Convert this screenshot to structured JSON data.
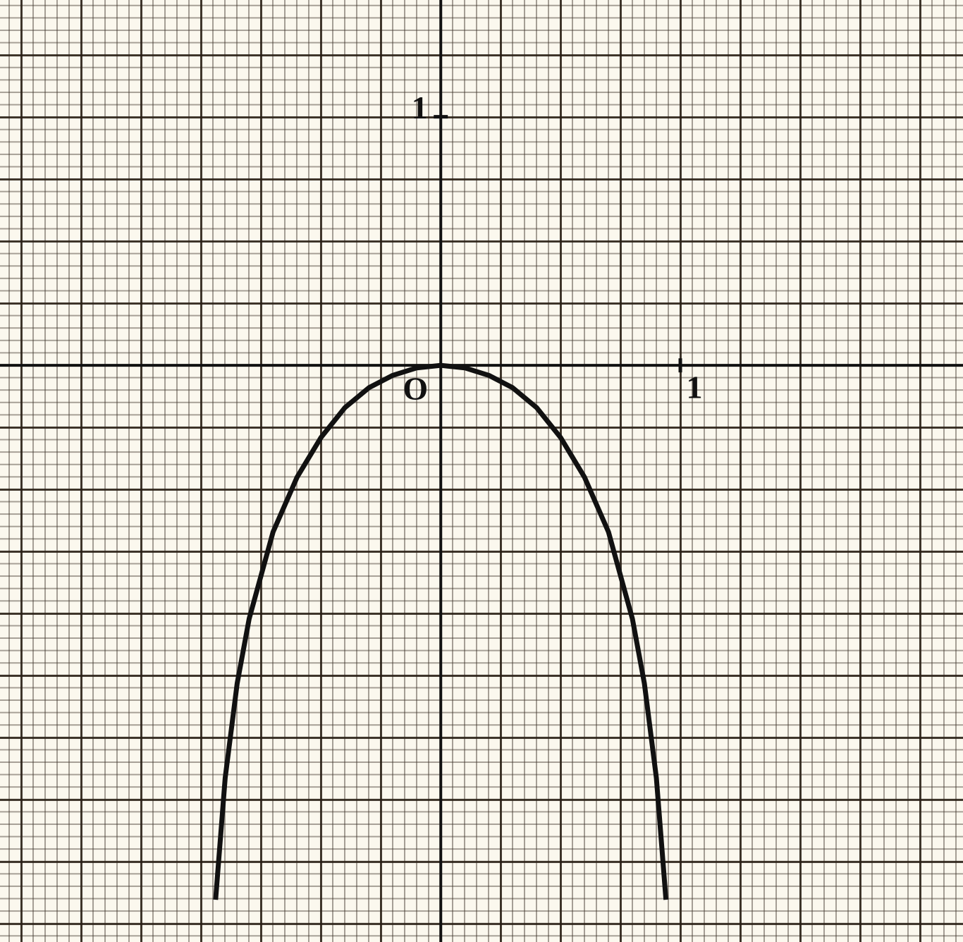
{
  "chart_data": {
    "type": "line",
    "x": [
      -0.94,
      -0.9,
      -0.85,
      -0.8,
      -0.7,
      -0.6,
      -0.5,
      -0.4,
      -0.3,
      -0.2,
      -0.1,
      0,
      0.1,
      0.2,
      0.3,
      0.4,
      0.5,
      0.6,
      0.7,
      0.8,
      0.85,
      0.9,
      0.94
    ],
    "series": [
      {
        "color": "#111111",
        "values": [
          -2.15,
          -1.66,
          -1.28,
          -1.02,
          -0.67,
          -0.45,
          -0.29,
          -0.17,
          -0.09,
          -0.04,
          -0.01,
          0,
          -0.01,
          -0.04,
          -0.09,
          -0.17,
          -0.29,
          -0.45,
          -0.67,
          -1.02,
          -1.28,
          -1.66,
          -2.15
        ]
      }
    ],
    "xlim": [
      -1.84,
      2.18
    ],
    "ylim": [
      -2.32,
      1.47
    ],
    "xticks": [
      1
    ],
    "yticks": [
      1
    ],
    "annotations": [
      "O"
    ]
  }
}
